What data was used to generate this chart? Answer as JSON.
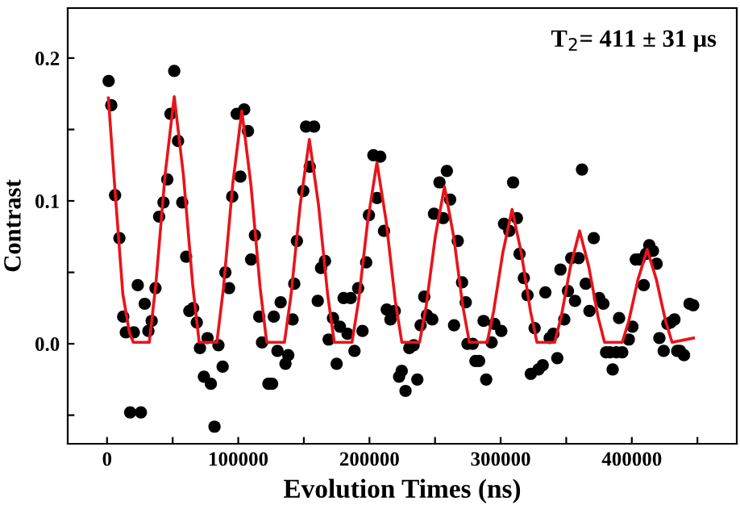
{
  "chart_data": {
    "type": "scatter",
    "xlabel": "Evolution Times (ns)",
    "ylabel": "Contrast",
    "annotations": [
      "T$_{2}$= 411 ± 31 μs"
    ],
    "xlim": [
      -30000,
      480000
    ],
    "ylim": [
      -0.07,
      0.235
    ],
    "xticks": [
      0,
      {
        "value": 50000,
        "label": null
      },
      100000,
      {
        "value": 150000,
        "label": null
      },
      200000,
      {
        "value": 250000,
        "label": null
      },
      300000,
      {
        "value": 350000,
        "label": null
      },
      400000,
      {
        "value": 450000,
        "label": null
      }
    ],
    "yticks": [
      {
        "value": -0.05,
        "label": null
      },
      {
        "value": 0,
        "label": "0.0"
      },
      {
        "value": 0.05,
        "label": null
      },
      0.1,
      {
        "value": 0.15,
        "label": null
      },
      0.2
    ],
    "grid": false,
    "legend": false,
    "marker": "circle",
    "series": [
      {
        "color": "#000000",
        "x": [
          1200,
          3200,
          6100,
          9400,
          12300,
          14300,
          20400,
          17600,
          25800,
          23400,
          28700,
          31500,
          34000,
          36900,
          39700,
          43000,
          45900,
          48300,
          51200,
          54100,
          57300,
          60300,
          62700,
          65600,
          68400,
          70800,
          73800,
          76600,
          79100,
          81900,
          84900,
          88100,
          90200,
          93000,
          95400,
          98800,
          101600,
          104500,
          107400,
          109800,
          112700,
          116000,
          118100,
          123000,
          125800,
          127100,
          129900,
          132300,
          136000,
          138100,
          141400,
          142700,
          144700,
          149600,
          151700,
          157800,
          154500,
          160600,
          163100,
          166100,
          168900,
          172200,
          175000,
          177500,
          180300,
          183300,
          185700,
          188600,
          191400,
          194700,
          197500,
          199600,
          203000,
          208200,
          205800,
          211100,
          213200,
          216000,
          219300,
          222600,
          224600,
          227500,
          230400,
          233700,
          236500,
          239000,
          241800,
          243800,
          247900,
          249200,
          253400,
          256200,
          259000,
          261500,
          267300,
          264500,
          270600,
          273400,
          274700,
          278700,
          280800,
          283600,
          289000,
          287000,
          293100,
          295200,
          300500,
          302600,
          306600,
          309500,
          312400,
          314400,
          317700,
          320500,
          323000,
          325900,
          328800,
          332100,
          334100,
          337400,
          340200,
          343200,
          345600,
          348500,
          351300,
          353800,
          356700,
          359500,
          362000,
          364900,
          367700,
          371000,
          375100,
          378300,
          380400,
          383300,
          385400,
          388200,
          390300,
          392700,
          397700,
          400500,
          403000,
          405900,
          409100,
          410800,
          413300,
          416100,
          418900,
          421000,
          424300,
          427100,
          429600,
          432500,
          434600,
          436700,
          439800,
          444000,
          446800
        ],
        "values": [
          0.184,
          0.167,
          0.104,
          0.074,
          0.019,
          0.008,
          0.008,
          -0.048,
          -0.048,
          0.041,
          0.028,
          0.009,
          0.016,
          0.039,
          0.089,
          0.099,
          0.115,
          0.161,
          0.191,
          0.142,
          0.099,
          0.061,
          0.023,
          0.025,
          0.015,
          -0.003,
          -0.023,
          0.004,
          -0.028,
          -0.058,
          -0.001,
          -0.016,
          0.05,
          0.039,
          0.103,
          0.161,
          0.117,
          0.164,
          0.149,
          0.059,
          0.076,
          0.019,
          0.001,
          -0.028,
          -0.028,
          0.019,
          -0.005,
          0.029,
          -0.014,
          -0.008,
          0.017,
          0.042,
          0.072,
          0.107,
          0.152,
          0.152,
          0.124,
          0.03,
          0.053,
          0.058,
          0.003,
          0.018,
          -0.014,
          0.012,
          0.032,
          0.007,
          0.032,
          -0.005,
          0.039,
          0.009,
          0.057,
          0.09,
          0.132,
          0.131,
          0.102,
          0.079,
          0.024,
          0.017,
          0.023,
          -0.023,
          -0.019,
          -0.033,
          -0.003,
          -0.001,
          -0.025,
          0.013,
          0.033,
          0.02,
          0.017,
          0.091,
          0.113,
          0.088,
          0.121,
          0.101,
          0.072,
          0.013,
          0.043,
          0.029,
          0.0,
          0.0,
          -0.012,
          -0.012,
          -0.025,
          0.016,
          0.001,
          0.014,
          0.009,
          0.084,
          0.079,
          0.113,
          0.088,
          0.063,
          0.046,
          0.034,
          -0.021,
          0.011,
          -0.018,
          -0.015,
          0.036,
          0.004,
          0.007,
          -0.01,
          0.052,
          0.017,
          0.037,
          0.06,
          0.03,
          0.06,
          0.122,
          0.042,
          0.023,
          0.074,
          0.032,
          0.028,
          -0.006,
          -0.006,
          -0.018,
          -0.006,
          0.018,
          -0.006,
          0.003,
          0.012,
          0.059,
          0.059,
          0.041,
          0.063,
          0.069,
          0.065,
          0.056,
          0.004,
          -0.005,
          0.014,
          0.015,
          0.017,
          -0.005,
          -0.005,
          -0.008,
          0.028,
          0.027
        ]
      },
      {
        "type": "line",
        "color": "#e8141a",
        "marker": "none",
        "line_style": "solid",
        "x": [
          1000,
          6000,
          12000,
          17000,
          20000,
          32200,
          37200,
          44200,
          51200,
          58200,
          65200,
          70200,
          83700,
          88700,
          95700,
          102700,
          109700,
          116700,
          121700,
          135200,
          140200,
          147200,
          154200,
          161200,
          168200,
          173200,
          186700,
          191700,
          198700,
          205700,
          212700,
          219700,
          224700,
          238200,
          243200,
          250200,
          257200,
          264200,
          271200,
          276200,
          289700,
          294700,
          301700,
          308700,
          315700,
          322700,
          327700,
          341200,
          346200,
          353200,
          360200,
          367200,
          374200,
          379200,
          392700,
          397700,
          404700,
          411700,
          418700,
          425700,
          430700,
          447000
        ],
        "values": [
          0.172,
          0.108,
          0.035,
          0.008,
          0.001,
          0.001,
          0.042,
          0.118,
          0.173,
          0.118,
          0.042,
          0.001,
          0.001,
          0.039,
          0.111,
          0.163,
          0.111,
          0.039,
          0.001,
          0.001,
          0.034,
          0.097,
          0.143,
          0.097,
          0.034,
          0.001,
          0.001,
          0.03,
          0.086,
          0.127,
          0.086,
          0.03,
          0.001,
          0.001,
          0.026,
          0.075,
          0.11,
          0.075,
          0.026,
          0.001,
          0.001,
          0.023,
          0.064,
          0.094,
          0.064,
          0.023,
          0.001,
          0.001,
          0.019,
          0.054,
          0.079,
          0.054,
          0.019,
          0.001,
          0.001,
          0.016,
          0.045,
          0.066,
          0.045,
          0.016,
          0.001,
          0.004
        ]
      }
    ]
  }
}
